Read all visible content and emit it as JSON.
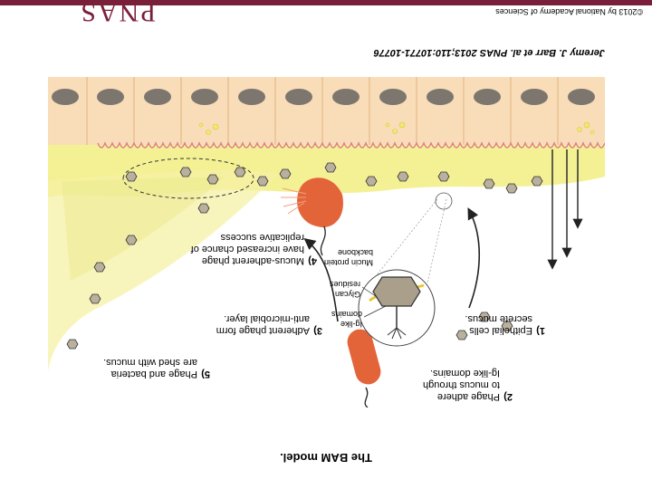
{
  "title": "The BAM model.",
  "citation": "Jeremy J. Barr et al. PNAS 2013;110:10771-10776",
  "copyright": "©2013 by National Academy of Sciences",
  "logo": "PNAS",
  "colors": {
    "brand": "#7a1f3a",
    "mucus": "#f3f08a",
    "epithelium": "#f8ddb8",
    "bacteria": "#e4643a"
  },
  "figure": {
    "steps": {
      "s1_num": "1)",
      "s1_line1": "Epithelial cells",
      "s1_line2": "secrete mucus.",
      "s2_num": "2)",
      "s2_line1": "Phage adhere",
      "s2_line2": "to mucus through",
      "s2_line3": "Ig-like domains.",
      "s3_num": "3)",
      "s3_line1": "Adherent phage form",
      "s3_line2": "anti-microbial layer.",
      "s4_num": "4)",
      "s4_line1": "Mucus-adherent phage",
      "s4_line2": "have increased chance of",
      "s4_line3": "replicative success",
      "s5_num": "5)",
      "s5_line1": "Phage and bacteria",
      "s5_line2": "are shed with mucus."
    },
    "inset": {
      "ig_line1": "Ig-like",
      "ig_line2": "domains",
      "glycan_line1": "Glycan",
      "glycan_line2": "residues",
      "mucin_line1": "Mucin protein",
      "mucin_line2": "backbone"
    }
  }
}
